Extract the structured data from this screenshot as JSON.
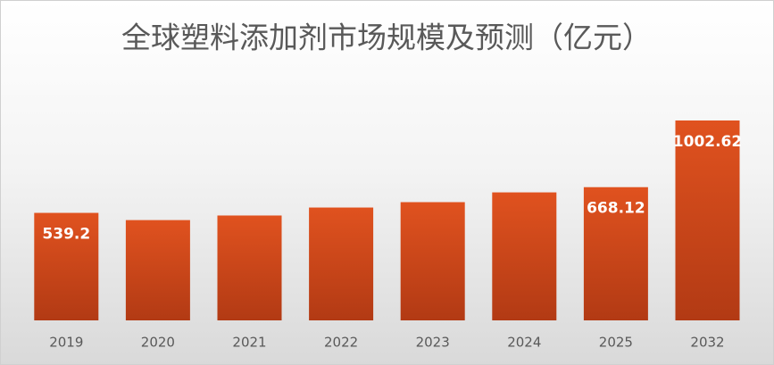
{
  "chart_data": {
    "type": "bar",
    "title": "全球塑料添加剂市场规模及预测（亿元）",
    "categories": [
      "2019",
      "2020",
      "2021",
      "2022",
      "2023",
      "2024",
      "2025",
      "2032"
    ],
    "values": [
      539.2,
      503,
      526,
      566,
      593,
      642,
      668.12,
      1002.62
    ],
    "value_labels": [
      "539.2",
      null,
      null,
      null,
      null,
      null,
      "668.12",
      "1002.62"
    ],
    "color": "#d24a1c"
  }
}
